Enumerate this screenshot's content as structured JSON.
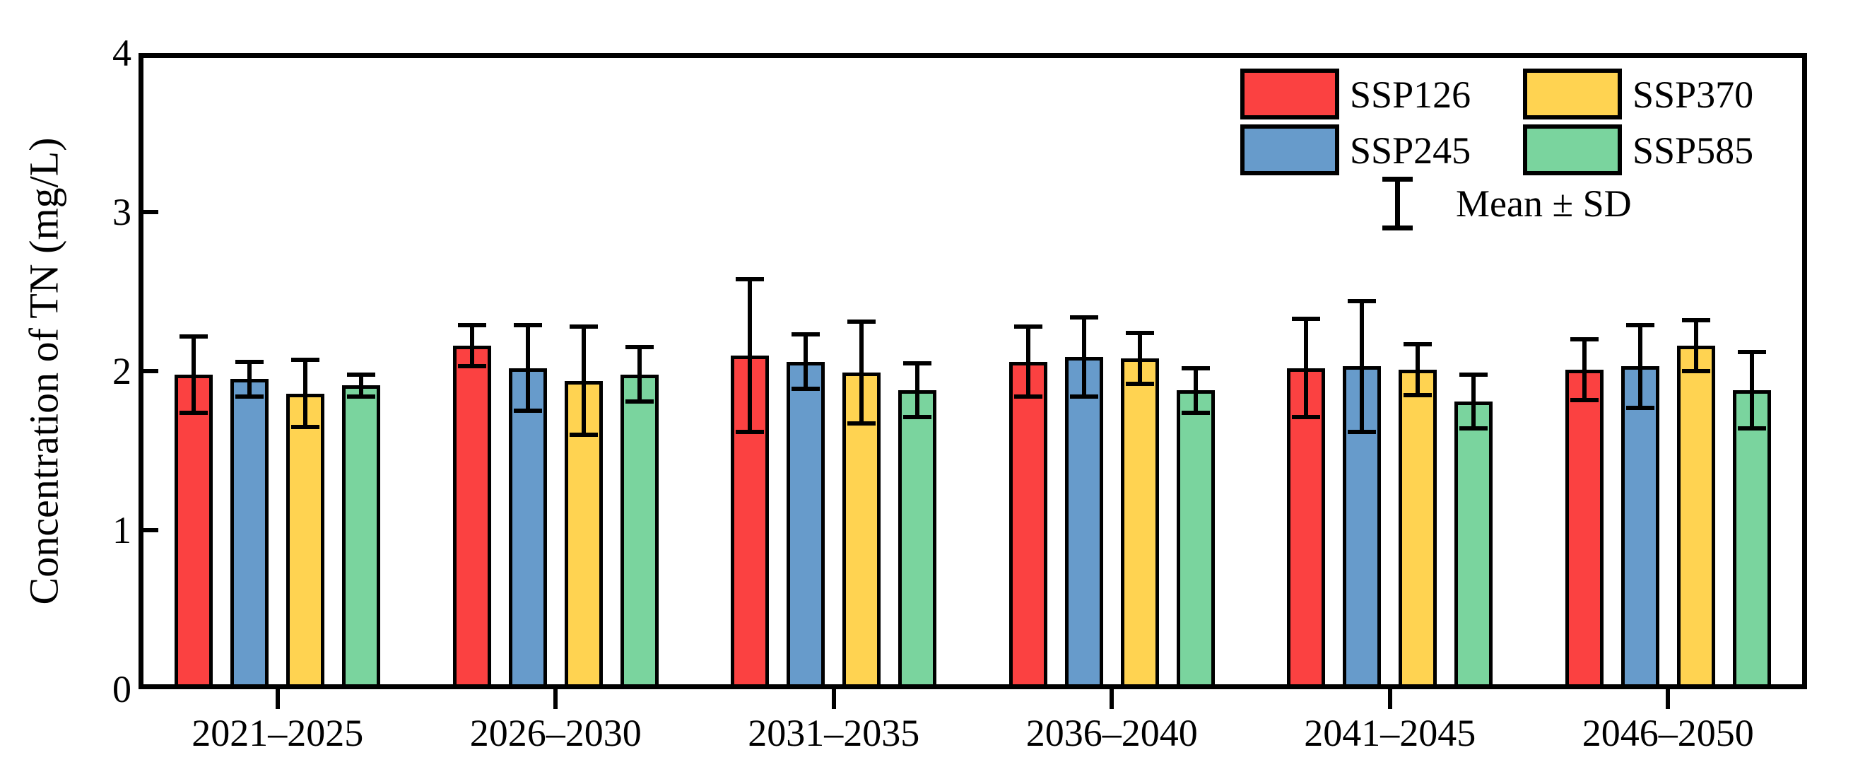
{
  "chart_data": {
    "type": "bar",
    "title": "",
    "xlabel": "",
    "ylabel": "Concentration of TN (mg/L)",
    "ylim": [
      0,
      4
    ],
    "yticks": [
      "0",
      "1",
      "2",
      "3",
      "4"
    ],
    "grid": false,
    "legend_position": "top-right-inside",
    "error_bars": "mean-plus-minus-sd",
    "error_legend_label": "Mean ± SD",
    "categories": [
      "2021–2025",
      "2026–2030",
      "2031–2035",
      "2036–2040",
      "2041–2045",
      "2046–2050"
    ],
    "series": [
      {
        "name": "SSP126",
        "color": "#FB4141",
        "means": [
          1.98,
          2.16,
          2.1,
          2.06,
          2.02,
          2.01
        ],
        "sd": [
          0.24,
          0.13,
          0.48,
          0.22,
          0.31,
          0.19
        ]
      },
      {
        "name": "SSP245",
        "color": "#679BCB",
        "means": [
          1.95,
          2.02,
          2.06,
          2.09,
          2.03,
          2.03
        ],
        "sd": [
          0.11,
          0.27,
          0.17,
          0.25,
          0.41,
          0.26
        ]
      },
      {
        "name": "SSP370",
        "color": "#FFD351",
        "means": [
          1.86,
          1.94,
          1.99,
          2.08,
          2.01,
          2.16
        ],
        "sd": [
          0.21,
          0.34,
          0.32,
          0.16,
          0.16,
          0.16
        ]
      },
      {
        "name": "SSP585",
        "color": "#7AD49E",
        "means": [
          1.91,
          1.98,
          1.88,
          1.88,
          1.81,
          1.88
        ],
        "sd": [
          0.07,
          0.17,
          0.17,
          0.14,
          0.17,
          0.24
        ]
      }
    ]
  }
}
